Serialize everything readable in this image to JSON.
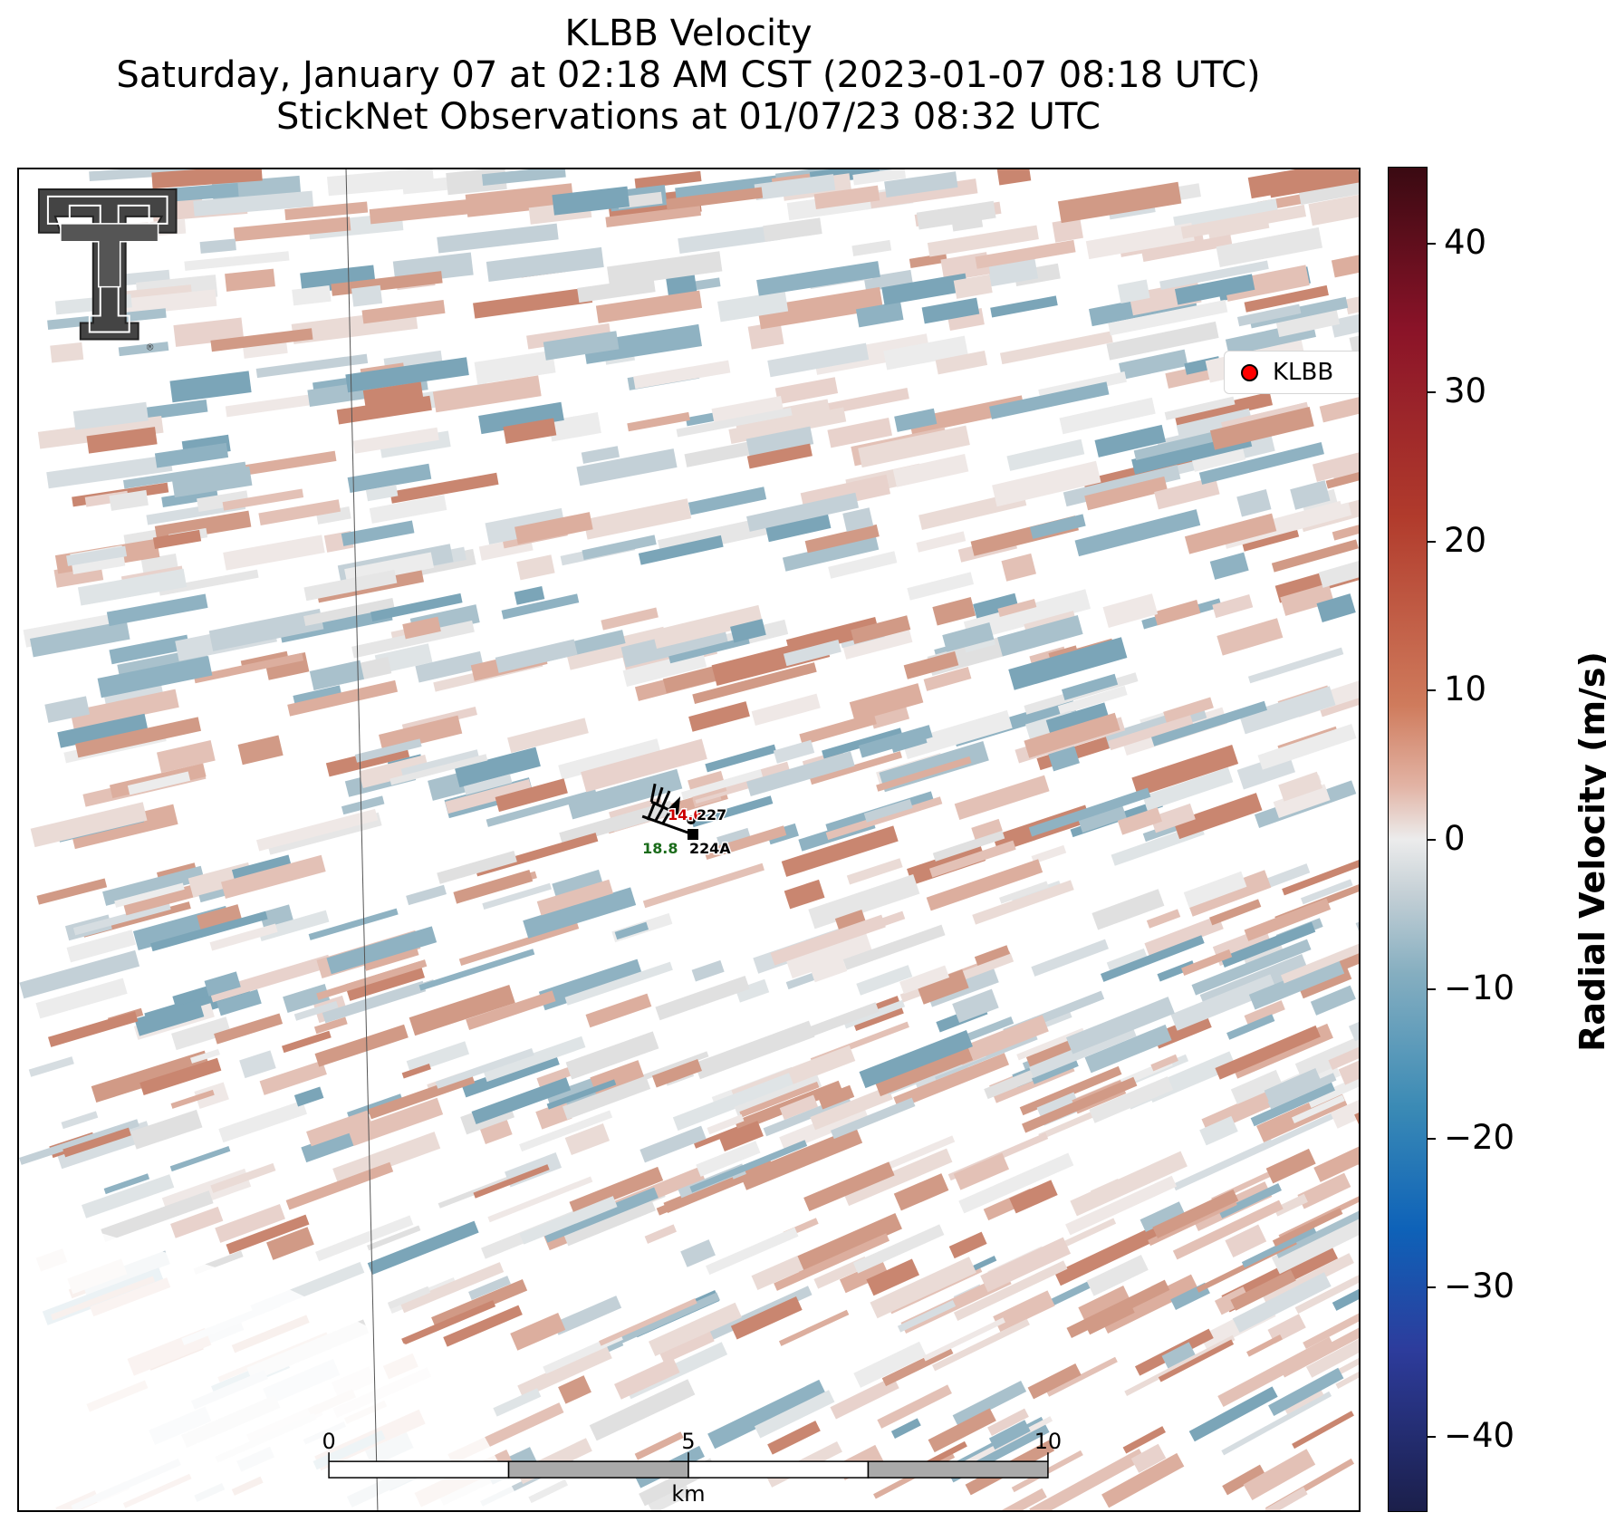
{
  "title": {
    "line1": "KLBB Velocity",
    "line2": "Saturday, January 07 at 02:18 AM CST (2023-01-07 08:18 UTC)",
    "line3": "StickNet Observations at 01/07/23 08:32 UTC"
  },
  "legend": {
    "label": "KLBB",
    "marker_color": "#ff0000"
  },
  "colorbar": {
    "label": "Radial Velocity (m/s)",
    "ticks": [
      "40",
      "30",
      "20",
      "10",
      "0",
      "−10",
      "−20",
      "−30",
      "−40"
    ],
    "range": [
      -45,
      45
    ],
    "colors": {
      "high": "#3a0a12",
      "positive": "#cf7b5c",
      "zero": "#ececec",
      "negative": "#85aec0",
      "low": "#1b1f4a"
    }
  },
  "scale_bar": {
    "labels": [
      "0",
      "5",
      "10"
    ],
    "unit": "km"
  },
  "stations": [
    {
      "id": "227",
      "value": "14.6",
      "value_color": "#cc0000"
    },
    {
      "id": "224A",
      "value": "18.8",
      "value_color": "#1a6b1a"
    }
  ],
  "logo": {
    "icon": "texas-tech-double-t-logo"
  }
}
